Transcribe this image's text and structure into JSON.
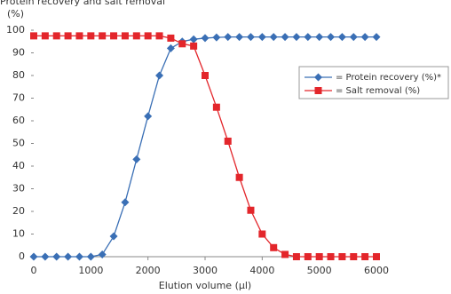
{
  "chart_data": {
    "type": "line",
    "title": "Protein recovery and salt removal",
    "y_label": "(%)",
    "x_label": "Elution volume (µl)",
    "x": [
      0,
      200,
      400,
      600,
      800,
      1000,
      1200,
      1400,
      1600,
      1800,
      2000,
      2200,
      2400,
      2600,
      2800,
      3000,
      3200,
      3400,
      3600,
      3800,
      4000,
      4200,
      4400,
      4600,
      4800,
      5000,
      5200,
      5400,
      5600,
      5800,
      6000
    ],
    "series": [
      {
        "name": "= Protein recovery (%)*",
        "color": "#3a6fb5",
        "marker": "diamond",
        "values": [
          0,
          0,
          0,
          0,
          0,
          0,
          1,
          9,
          24,
          43,
          62,
          80,
          92,
          95,
          96,
          96.5,
          96.8,
          97,
          97,
          97,
          97,
          97,
          97,
          97,
          97,
          97,
          97,
          97,
          97,
          97,
          97
        ]
      },
      {
        "name": "= Salt removal (%)",
        "color": "#e3262b",
        "marker": "square",
        "values": [
          97.5,
          97.5,
          97.5,
          97.5,
          97.5,
          97.5,
          97.5,
          97.5,
          97.5,
          97.5,
          97.5,
          97.5,
          96.5,
          94,
          93,
          80,
          66,
          51,
          35,
          20.5,
          10,
          4,
          1,
          0,
          0,
          0,
          0,
          0,
          0,
          0,
          0
        ]
      }
    ],
    "xlim": [
      0,
      6000
    ],
    "xticks": [
      0,
      1000,
      2000,
      3000,
      4000,
      5000,
      6000
    ],
    "ylim": [
      0,
      100
    ],
    "yticks": [
      0,
      10,
      20,
      30,
      40,
      50,
      60,
      70,
      80,
      90,
      100
    ],
    "grid": false
  }
}
